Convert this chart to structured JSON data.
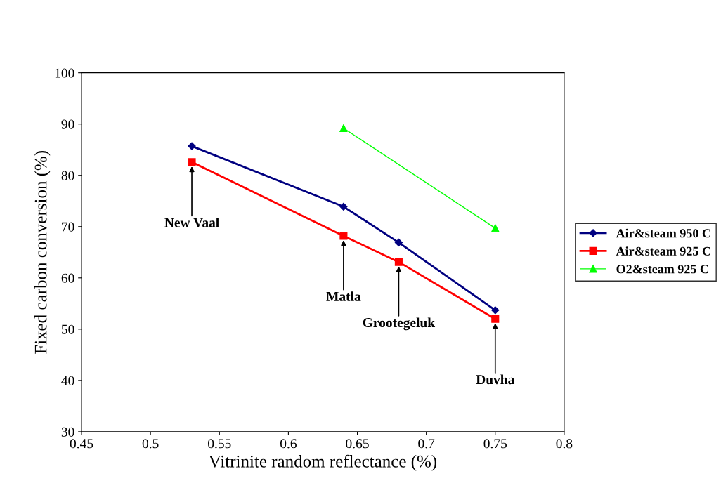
{
  "chart_data": {
    "type": "line",
    "xlabel": "Vitrinite random reflectance (%)",
    "ylabel": "Fixed carbon conversion (%)",
    "xlim": [
      0.45,
      0.8
    ],
    "xticks": [
      0.45,
      0.5,
      0.55,
      0.6,
      0.65,
      0.7,
      0.75,
      0.8
    ],
    "ylim": [
      30,
      100
    ],
    "yticks": [
      30,
      40,
      50,
      60,
      70,
      80,
      90,
      100
    ],
    "grid": false,
    "legend": "right",
    "series": [
      {
        "name": "Air&steam 950 C",
        "color": "#000080",
        "marker": "diamond",
        "x": [
          0.53,
          0.64,
          0.68,
          0.75
        ],
        "values": [
          85.7,
          73.9,
          66.9,
          53.7
        ]
      },
      {
        "name": "Air&steam 925 C",
        "color": "#ff0000",
        "marker": "square",
        "x": [
          0.53,
          0.64,
          0.68,
          0.75
        ],
        "values": [
          82.6,
          68.2,
          63.1,
          52.0
        ]
      },
      {
        "name": "O2&steam 925 C",
        "color": "#00ff00",
        "marker": "triangle",
        "x": [
          0.64,
          0.75
        ],
        "values": [
          89.2,
          69.7
        ]
      }
    ],
    "annotations": [
      {
        "text": "New Vaal",
        "x": 0.53,
        "y": 82.6
      },
      {
        "text": "Matla",
        "x": 0.64,
        "y": 68.2
      },
      {
        "text": "Grootegeluk",
        "x": 0.68,
        "y": 63.1
      },
      {
        "text": "Duvha",
        "x": 0.75,
        "y": 52.0
      }
    ]
  }
}
